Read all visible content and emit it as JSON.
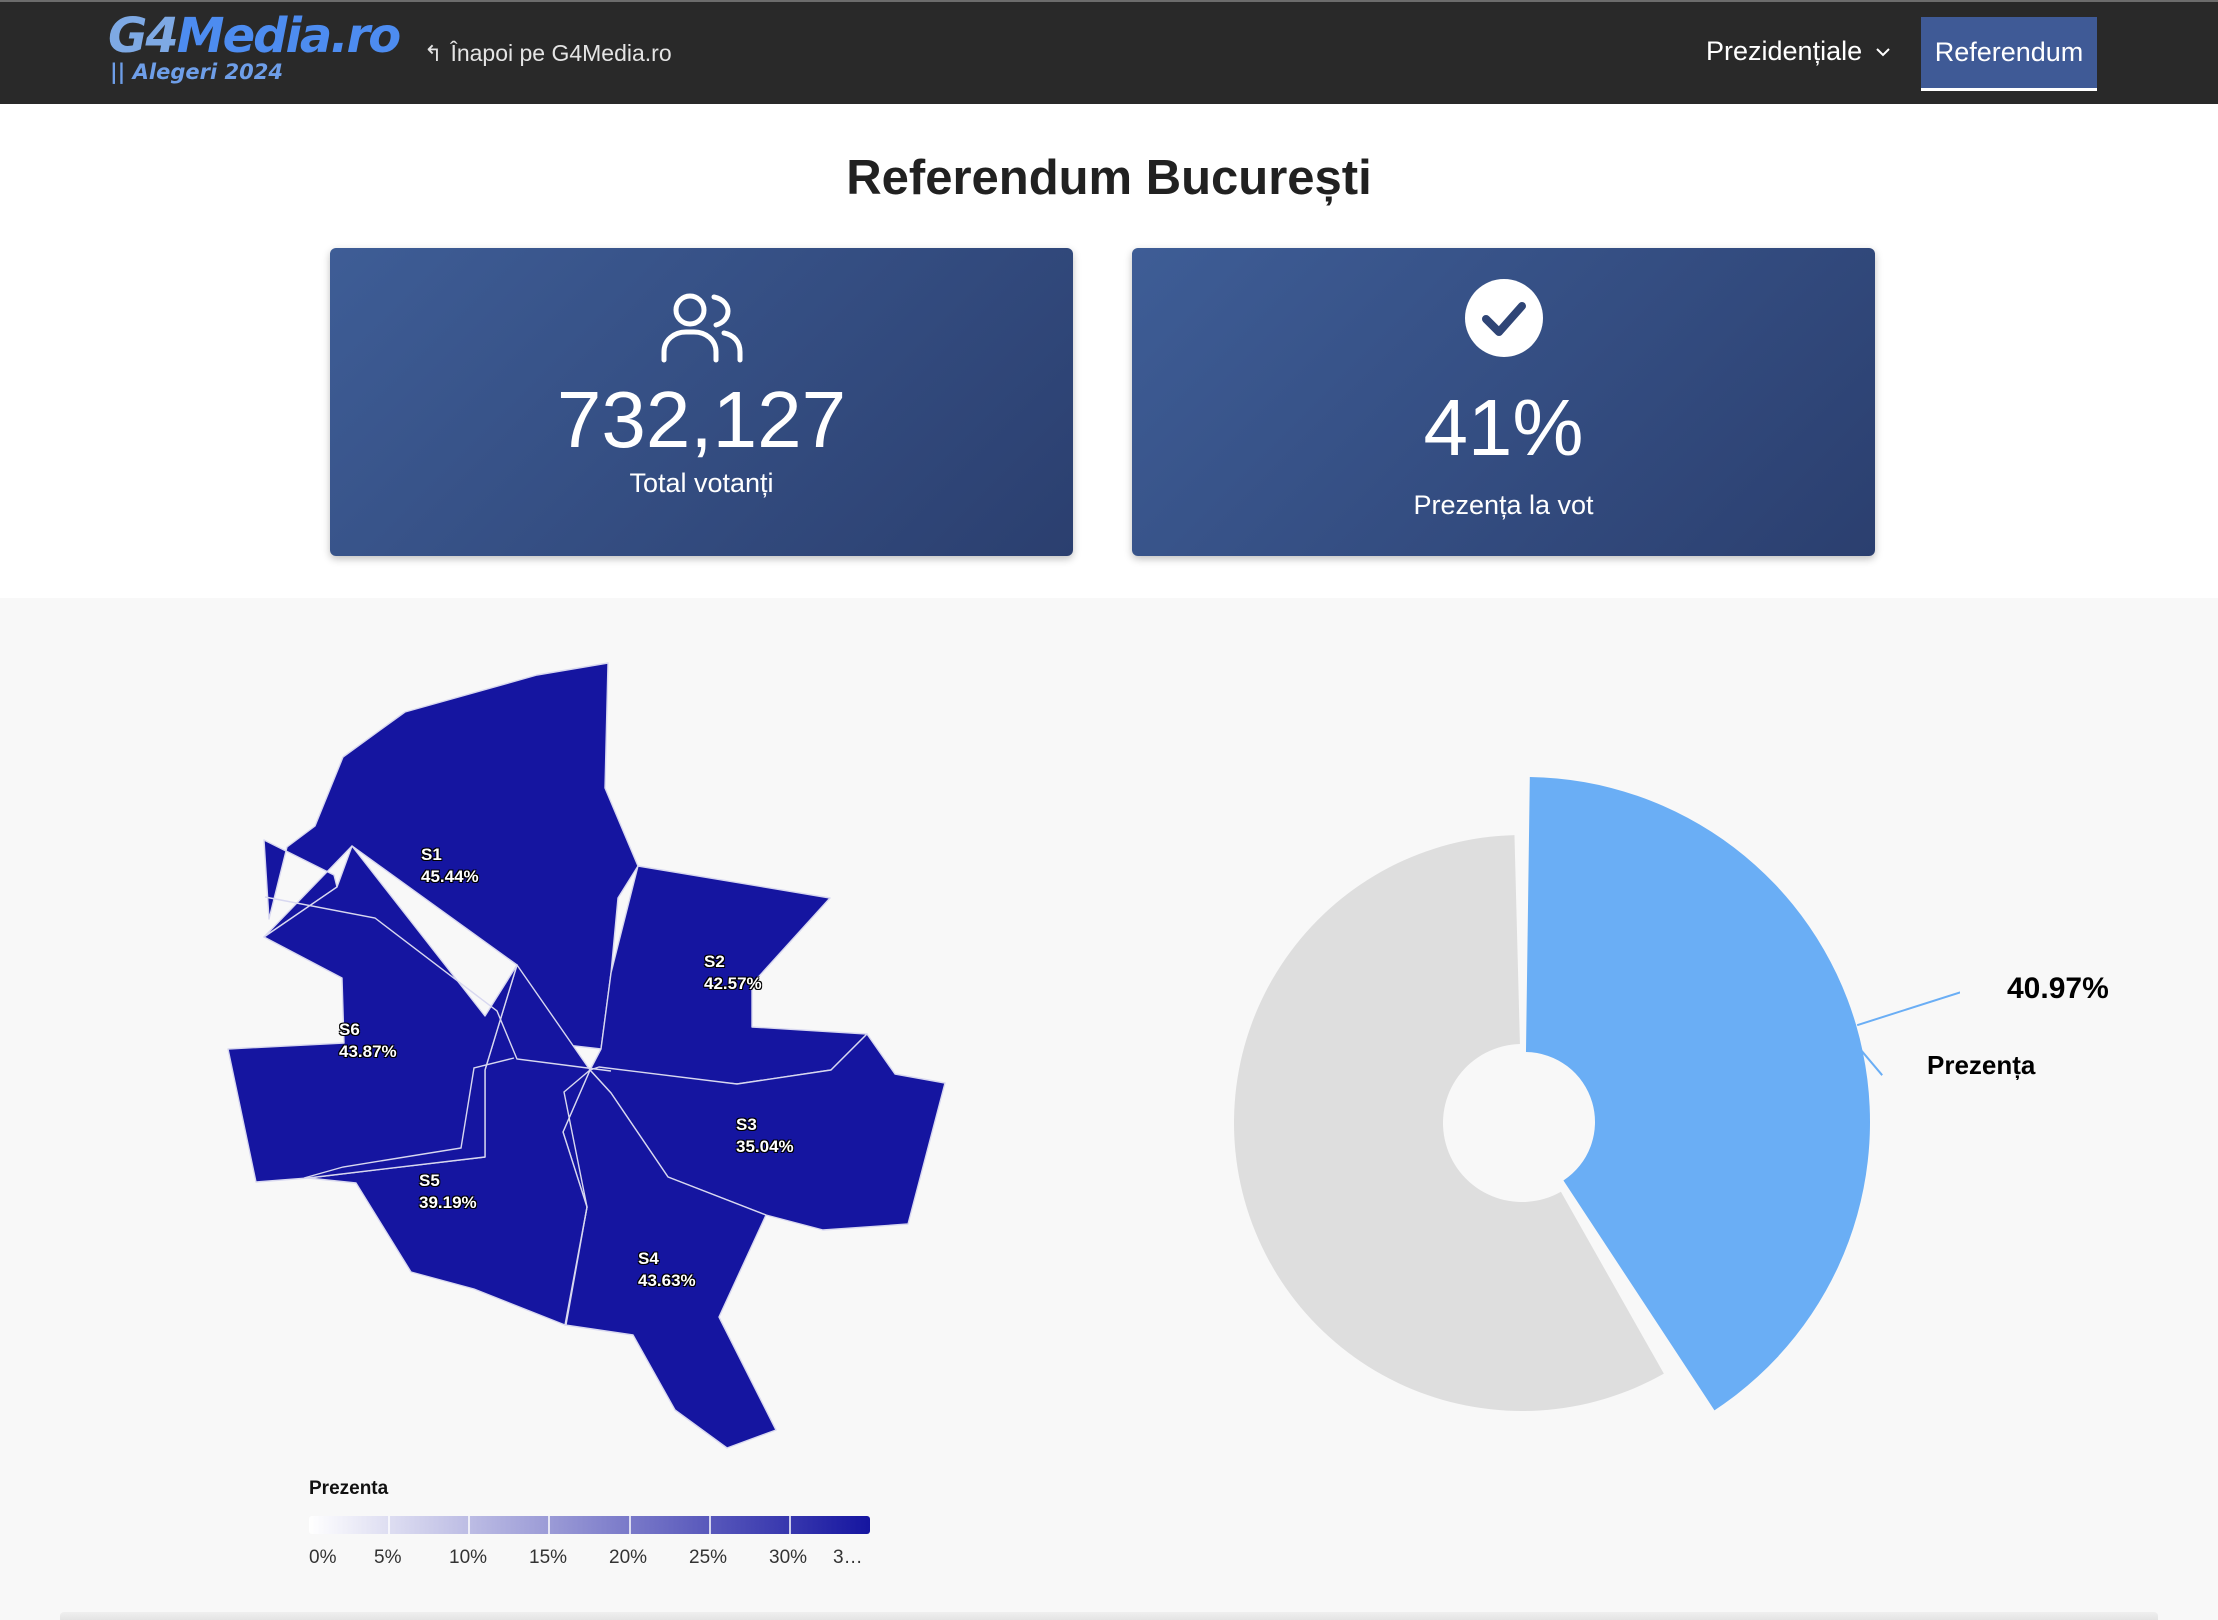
{
  "header": {
    "logo_g4": "G4",
    "logo_media": "Media.ro",
    "logo_subtitle": "|| Alegeri 2024",
    "back_link": "Înapoi pe G4Media.ro",
    "nav_dropdown": "Prezidențiale",
    "nav_active": "Referendum"
  },
  "page_title": "Referendum București",
  "stats": {
    "total_votanti": {
      "value": "732,127",
      "label": "Total votanți",
      "icon": "users-icon"
    },
    "prezenta": {
      "value": "41%",
      "label": "Prezența la vot",
      "icon": "check-circle-icon"
    }
  },
  "map": {
    "color_scale": [
      "#ffffff",
      "#1515a0"
    ],
    "sectors": [
      {
        "name": "S1",
        "turnout": "45.44%"
      },
      {
        "name": "S2",
        "turnout": "42.57%"
      },
      {
        "name": "S3",
        "turnout": "35.04%"
      },
      {
        "name": "S4",
        "turnout": "43.63%"
      },
      {
        "name": "S5",
        "turnout": "39.19%"
      },
      {
        "name": "S6",
        "turnout": "43.87%"
      }
    ],
    "legend": {
      "title": "Prezenta",
      "ticks": [
        "0%",
        "5%",
        "10%",
        "15%",
        "20%",
        "25%",
        "30%",
        "3…"
      ]
    }
  },
  "pie": {
    "series_label": "Prezența",
    "value": 40.97,
    "value_label": "40.97%",
    "colors": {
      "highlight": "#6aaef5",
      "rest": "#dedede"
    }
  }
}
